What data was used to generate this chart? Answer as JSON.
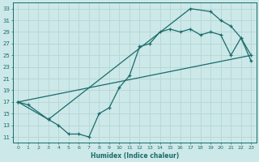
{
  "xlabel": "Humidex (Indice chaleur)",
  "bg_color": "#cce8e8",
  "grid_color": "#b8d8d8",
  "line_color": "#1a6b6b",
  "xlim": [
    -0.5,
    23.5
  ],
  "ylim": [
    10,
    34
  ],
  "xticks": [
    0,
    1,
    2,
    3,
    4,
    5,
    6,
    7,
    8,
    9,
    10,
    11,
    12,
    13,
    14,
    15,
    16,
    17,
    18,
    19,
    20,
    21,
    22,
    23
  ],
  "yticks": [
    11,
    13,
    15,
    17,
    19,
    21,
    23,
    25,
    27,
    29,
    31,
    33
  ],
  "line1_x": [
    0,
    1,
    3,
    4,
    5,
    6,
    7,
    8,
    9,
    10,
    11,
    12,
    13,
    14,
    15,
    16,
    17,
    18,
    19,
    20,
    21,
    22,
    23
  ],
  "line1_y": [
    17,
    16.5,
    14,
    13,
    11.5,
    11.5,
    11,
    15,
    16,
    19.5,
    21.5,
    26.5,
    27,
    29,
    29.5,
    29,
    29.5,
    28.5,
    29,
    28.5,
    25,
    28,
    24
  ],
  "line2_x": [
    0,
    23
  ],
  "line2_y": [
    17,
    25
  ],
  "line3_x": [
    0,
    3,
    17,
    19,
    20,
    21,
    22,
    23
  ],
  "line3_y": [
    17,
    14,
    33,
    32.5,
    31,
    30,
    28,
    25
  ]
}
